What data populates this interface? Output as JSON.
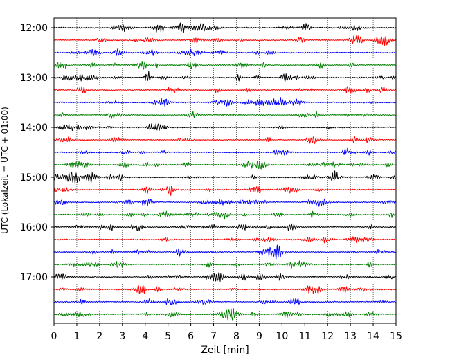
{
  "chart_data": {
    "type": "line",
    "title": "",
    "xlabel": "Zeit  [min]",
    "ylabel": "UTC (Lokalzeit = UTC + 01:00)",
    "xlim": [
      0,
      15
    ],
    "x_ticks": [
      "0",
      "1",
      "2",
      "3",
      "4",
      "5",
      "6",
      "7",
      "8",
      "9",
      "10",
      "11",
      "12",
      "13",
      "14",
      "15"
    ],
    "y_ticks": [
      "12:00",
      "13:00",
      "14:00",
      "15:00",
      "16:00",
      "17:00"
    ],
    "grid": "vertical dotted",
    "trace_colors": [
      "#000000",
      "#ff0000",
      "#0000ff",
      "#008000"
    ],
    "trace_start_times": [
      "12:00",
      "12:15",
      "12:30",
      "12:45",
      "13:00",
      "13:15",
      "13:30",
      "13:45",
      "14:00",
      "14:15",
      "14:30",
      "14:45",
      "15:00",
      "15:15",
      "15:30",
      "15:45",
      "16:00",
      "16:15",
      "16:30",
      "16:45",
      "17:00",
      "17:15",
      "17:30",
      "17:45"
    ],
    "trace_minutes": 15
  }
}
